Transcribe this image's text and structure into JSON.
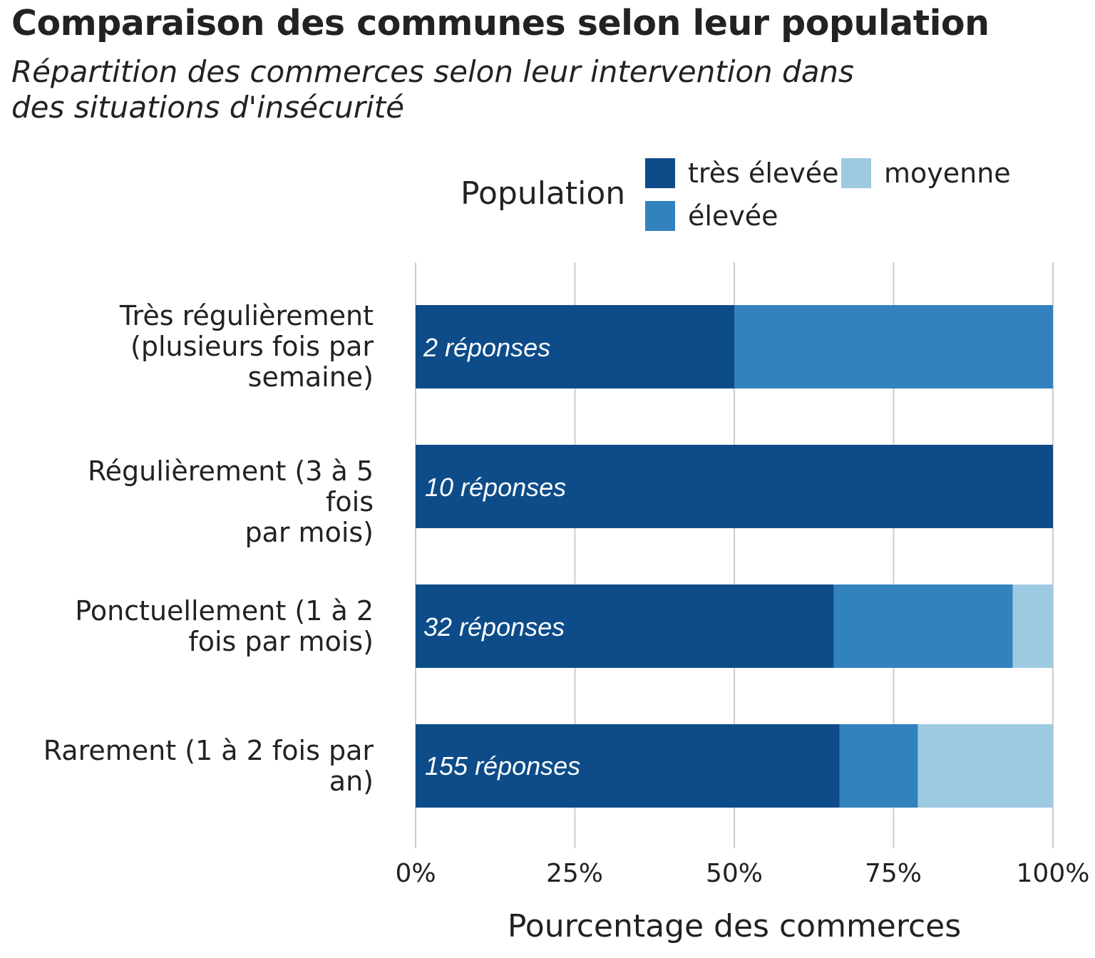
{
  "colors": {
    "tres_elevee": "#0d4c89",
    "elevee": "#3282bd",
    "moyenne": "#9ecae1",
    "grid": "#cccccc"
  },
  "chart_data": {
    "type": "bar",
    "orientation": "horizontal",
    "stacked": true,
    "title": "Comparaison des communes selon leur population",
    "subtitle_lines": [
      "Répartition des commerces selon leur intervention dans",
      "des situations d'insécurité"
    ],
    "xlabel": "Pourcentage des commerces",
    "ylabel": "",
    "xlim": [
      0,
      100
    ],
    "x_ticks": [
      "0%",
      "25%",
      "50%",
      "75%",
      "100%"
    ],
    "grid": true,
    "legend": {
      "title": "Population",
      "placement": "top",
      "labels": [
        "très élevée",
        "élevée",
        "moyenne"
      ]
    },
    "categories": [
      [
        "Très régulièrement",
        "(plusieurs fois par",
        "semaine)"
      ],
      [
        "Régulièrement (3 à 5 fois",
        "par mois)"
      ],
      [
        "Ponctuellement (1 à 2",
        "fois par mois)"
      ],
      [
        "Rarement (1 à 2 fois par",
        "an)"
      ]
    ],
    "annotations": [
      "2 réponses",
      "10 réponses",
      "32 réponses",
      "155 réponses"
    ],
    "series": [
      {
        "name": "très élevée",
        "values": [
          50,
          100,
          65.6,
          66.5
        ]
      },
      {
        "name": "élevée",
        "values": [
          50,
          0,
          28.1,
          12.3
        ]
      },
      {
        "name": "moyenne",
        "values": [
          0,
          0,
          6.3,
          21.2
        ]
      }
    ]
  }
}
